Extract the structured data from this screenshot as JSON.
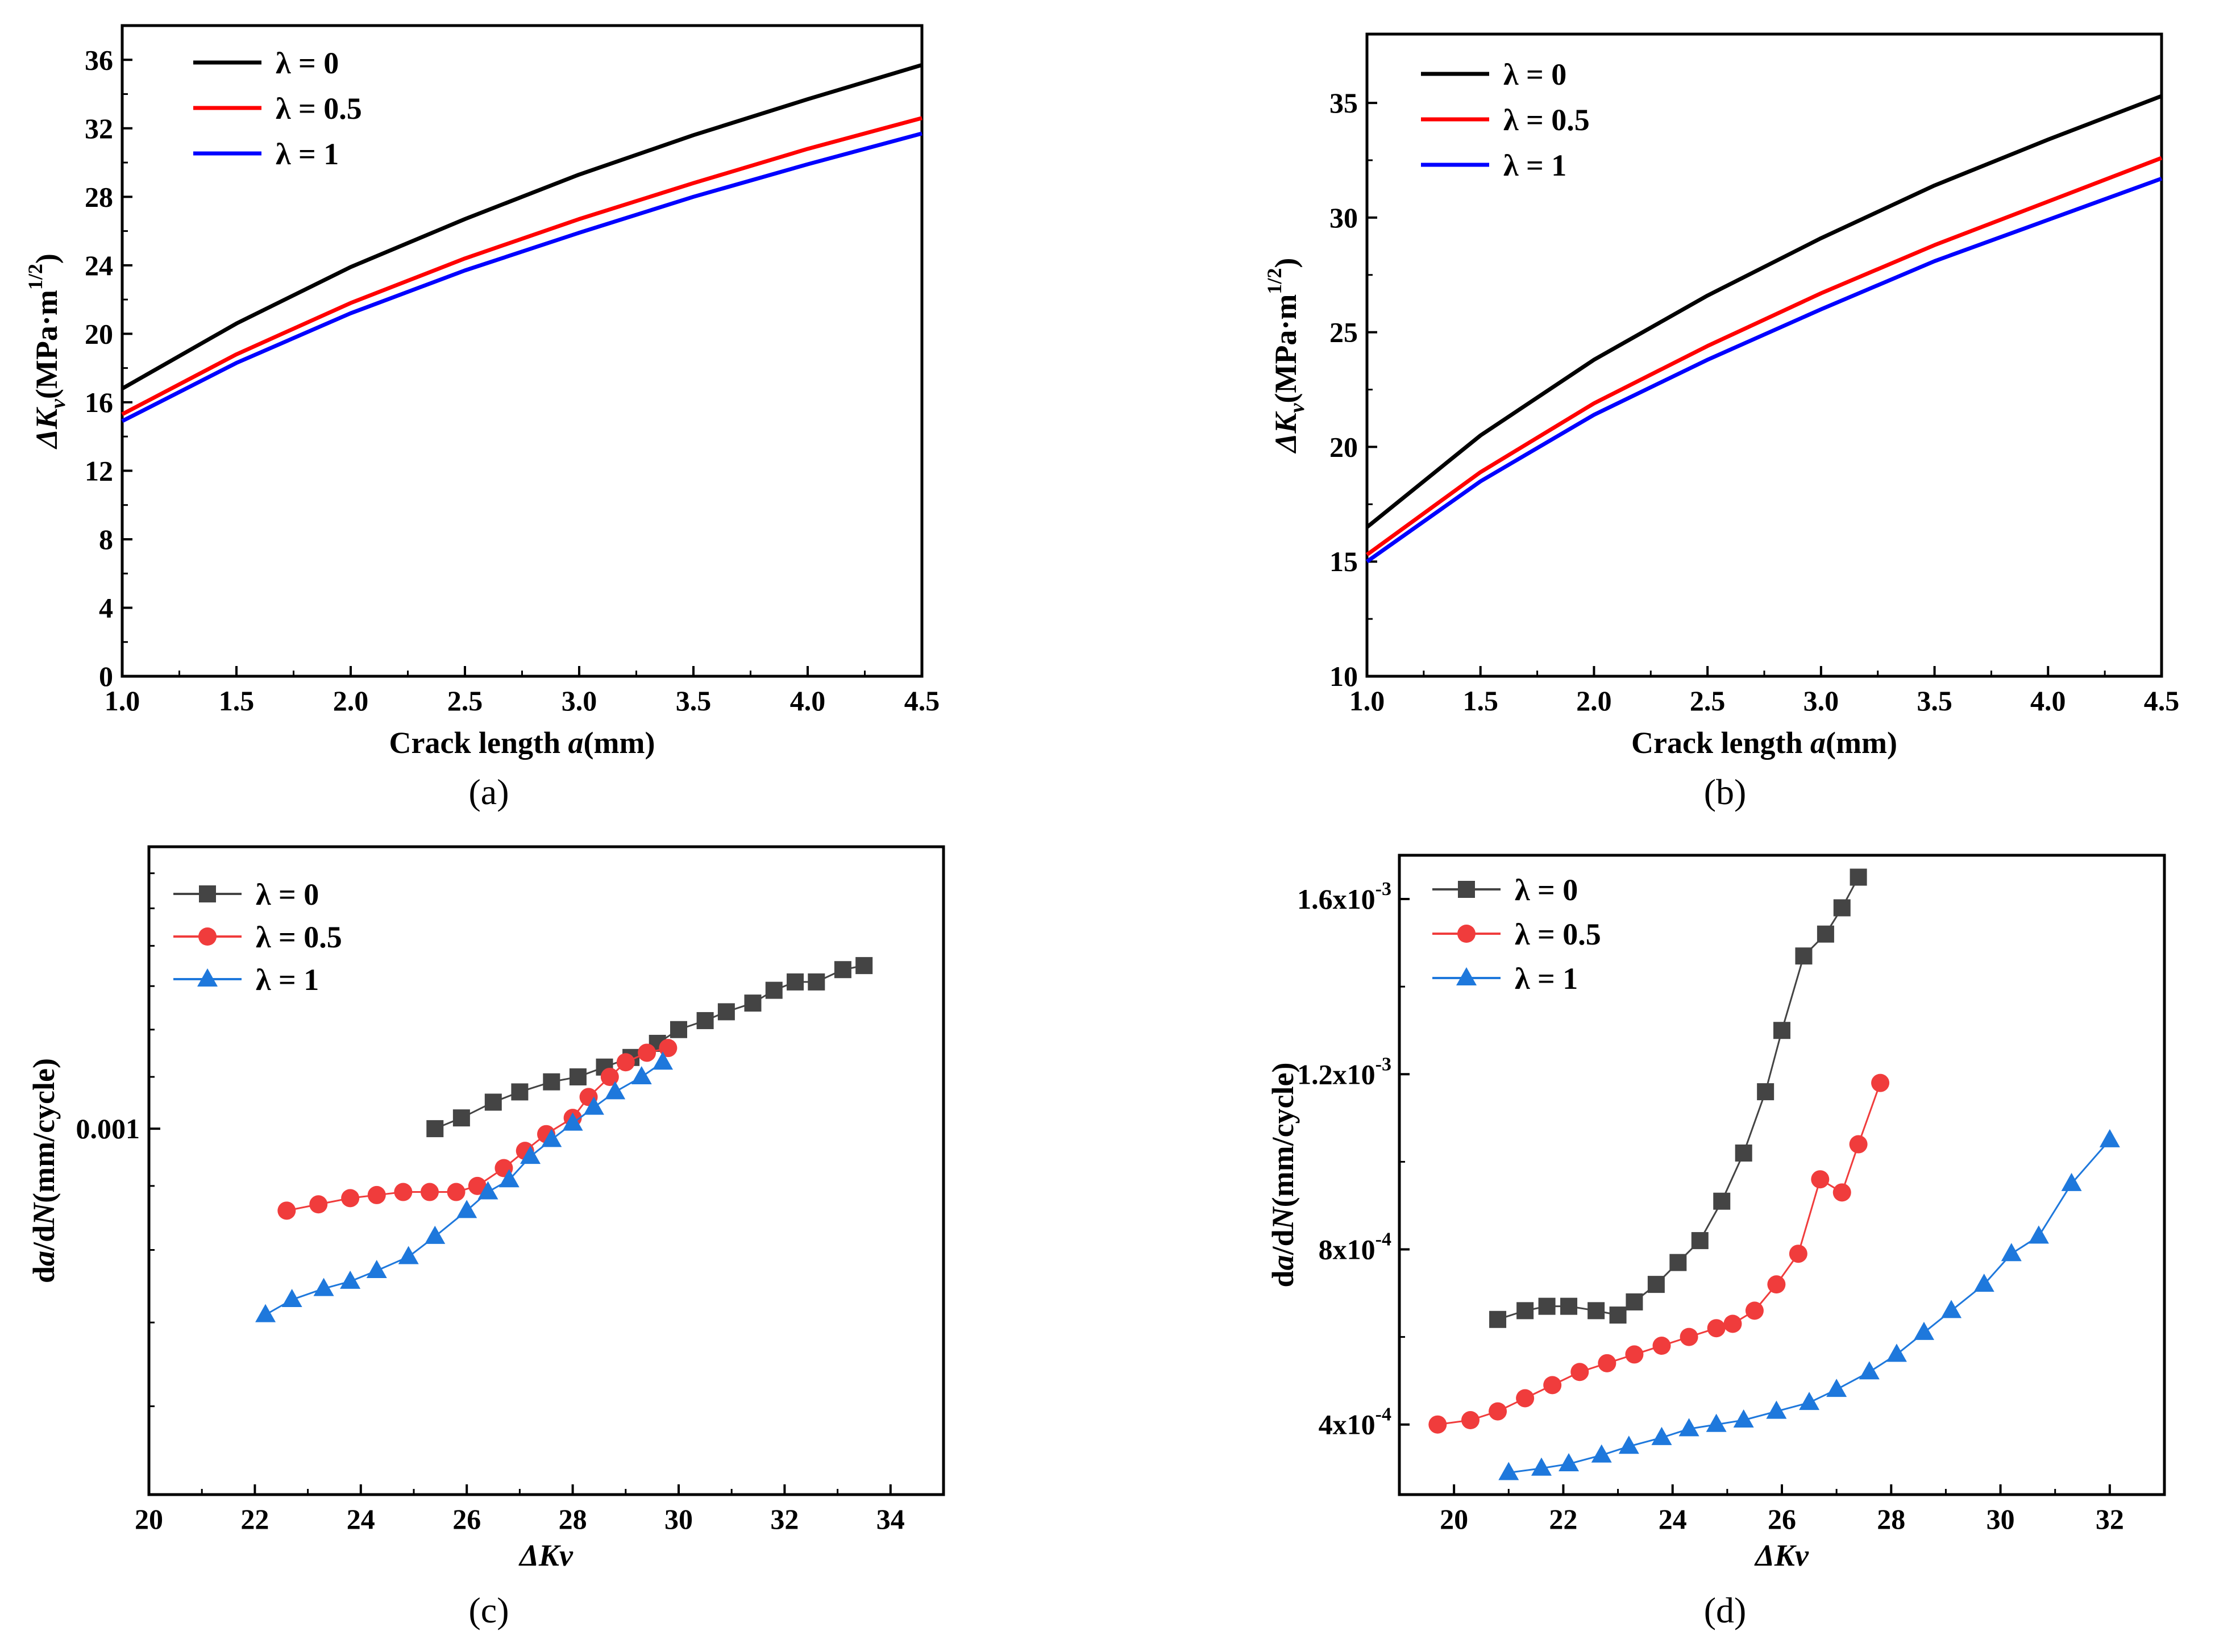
{
  "chart_data": [
    {
      "panel": "a",
      "panel_label": "(a)",
      "type": "line",
      "xlabel_prefix": "Crack length ",
      "xlabel_var": "a",
      "xlabel_suffix": "(mm)",
      "ylabel": "ΔKv(MPa·m1/2)",
      "ylabel_prefix": "Δ",
      "ylabel_var": "K",
      "ylabel_sub": "v",
      "ylabel_units": "(MPa·m",
      "ylabel_sup": "1/2",
      "ylabel_close": ")",
      "xlim": [
        1.0,
        4.5
      ],
      "ylim": [
        0,
        38
      ],
      "xticks": [
        1.0,
        1.5,
        2.0,
        2.5,
        3.0,
        3.5,
        4.0,
        4.5
      ],
      "xtick_labels": [
        "1.0",
        "1.5",
        "2.0",
        "2.5",
        "3.0",
        "3.5",
        "4.0",
        "4.5"
      ],
      "yticks": [
        0,
        4,
        8,
        12,
        16,
        20,
        24,
        28,
        32,
        36
      ],
      "ytick_labels": [
        "0",
        "4",
        "8",
        "12",
        "16",
        "20",
        "24",
        "28",
        "32",
        "36"
      ],
      "legend_position": "top-left",
      "series": [
        {
          "name": "λ = 0",
          "color": "#000000",
          "x": [
            1.0,
            1.5,
            2.0,
            2.5,
            3.0,
            3.5,
            4.0,
            4.5
          ],
          "y": [
            16.8,
            20.6,
            23.9,
            26.7,
            29.3,
            31.6,
            33.7,
            35.7
          ]
        },
        {
          "name": "λ = 0.5",
          "color": "#ff0000",
          "x": [
            1.0,
            1.5,
            2.0,
            2.5,
            3.0,
            3.5,
            4.0,
            4.5
          ],
          "y": [
            15.3,
            18.8,
            21.8,
            24.4,
            26.7,
            28.8,
            30.8,
            32.6
          ]
        },
        {
          "name": "λ = 1",
          "color": "#0000ff",
          "x": [
            1.0,
            1.5,
            2.0,
            2.5,
            3.0,
            3.5,
            4.0,
            4.5
          ],
          "y": [
            14.9,
            18.3,
            21.2,
            23.7,
            25.9,
            28.0,
            29.9,
            31.7
          ]
        }
      ]
    },
    {
      "panel": "b",
      "panel_label": "(b)",
      "type": "line",
      "xlabel_prefix": "Crack length ",
      "xlabel_var": "a",
      "xlabel_suffix": "(mm)",
      "ylabel": "ΔKv(MPa·m1/2)",
      "ylabel_prefix": "Δ",
      "ylabel_var": "K",
      "ylabel_sub": "v",
      "ylabel_units": "(MPa·m",
      "ylabel_sup": "1/2",
      "ylabel_close": ")",
      "xlim": [
        1.0,
        4.5
      ],
      "ylim": [
        10,
        38
      ],
      "xticks": [
        1.0,
        1.5,
        2.0,
        2.5,
        3.0,
        3.5,
        4.0,
        4.5
      ],
      "xtick_labels": [
        "1.0",
        "1.5",
        "2.0",
        "2.5",
        "3.0",
        "3.5",
        "4.0",
        "4.5"
      ],
      "yticks": [
        10,
        15,
        20,
        25,
        30,
        35
      ],
      "ytick_labels": [
        "10",
        "15",
        "20",
        "25",
        "30",
        "35"
      ],
      "legend_position": "top-left",
      "series": [
        {
          "name": "λ = 0",
          "color": "#000000",
          "x": [
            1.0,
            1.5,
            2.0,
            2.5,
            3.0,
            3.5,
            4.0,
            4.5
          ],
          "y": [
            16.5,
            20.5,
            23.8,
            26.6,
            29.1,
            31.4,
            33.4,
            35.3
          ]
        },
        {
          "name": "λ = 0.5",
          "color": "#ff0000",
          "x": [
            1.0,
            1.5,
            2.0,
            2.5,
            3.0,
            3.5,
            4.0,
            4.5
          ],
          "y": [
            15.3,
            18.9,
            21.9,
            24.4,
            26.7,
            28.8,
            30.7,
            32.6
          ]
        },
        {
          "name": "λ = 1",
          "color": "#0000ff",
          "x": [
            1.0,
            1.5,
            2.0,
            2.5,
            3.0,
            3.5,
            4.0,
            4.5
          ],
          "y": [
            15.0,
            18.5,
            21.4,
            23.8,
            26.0,
            28.1,
            29.9,
            31.7
          ]
        }
      ]
    },
    {
      "panel": "c",
      "panel_label": "(c)",
      "type": "line",
      "yscale": "log",
      "xlabel": "ΔKv",
      "ylabel_prefix": "d",
      "ylabel_var1": "a",
      "ylabel_mid": "/d",
      "ylabel_var2": "N",
      "ylabel_suffix": "(mm/cycle)",
      "xlim": [
        20,
        35
      ],
      "ylim": [
        0.00051,
        0.00168
      ],
      "xticks": [
        20,
        22,
        24,
        26,
        28,
        30,
        32,
        34
      ],
      "xtick_labels": [
        "20",
        "22",
        "24",
        "26",
        "28",
        "30",
        "32",
        "34"
      ],
      "yticks": [
        0.001
      ],
      "ytick_labels": [
        "0.001"
      ],
      "legend_position": "top-left",
      "series": [
        {
          "name": "λ = 0",
          "color": "#444444",
          "marker": "square",
          "x": [
            25.4,
            25.9,
            26.5,
            27.0,
            27.6,
            28.1,
            28.6,
            29.1,
            29.6,
            30.0,
            30.5,
            30.9,
            31.4,
            31.8,
            32.2,
            32.6,
            33.1,
            33.5
          ],
          "y": [
            0.001,
            0.00102,
            0.00105,
            0.00107,
            0.00109,
            0.0011,
            0.00112,
            0.00114,
            0.00117,
            0.0012,
            0.00122,
            0.00124,
            0.00126,
            0.00129,
            0.00131,
            0.00131,
            0.00134,
            0.00135
          ]
        },
        {
          "name": "λ = 0.5",
          "color": "#f03c3c",
          "marker": "circle",
          "x": [
            22.6,
            23.2,
            23.8,
            24.3,
            24.8,
            25.3,
            25.8,
            26.2,
            26.7,
            27.1,
            27.5,
            28.0,
            28.3,
            28.7,
            29.0,
            29.4,
            29.8
          ],
          "y": [
            0.00086,
            0.00087,
            0.00088,
            0.000885,
            0.00089,
            0.00089,
            0.00089,
            0.0009,
            0.00093,
            0.00096,
            0.00099,
            0.00102,
            0.00106,
            0.0011,
            0.00113,
            0.00115,
            0.00116
          ]
        },
        {
          "name": "λ = 1",
          "color": "#1e78dc",
          "marker": "triangle",
          "x": [
            22.2,
            22.7,
            23.3,
            23.8,
            24.3,
            24.9,
            25.4,
            26.0,
            26.4,
            26.8,
            27.2,
            27.6,
            28.0,
            28.4,
            28.8,
            29.3,
            29.7
          ],
          "y": [
            0.00071,
            0.00073,
            0.000745,
            0.000755,
            0.00077,
            0.00079,
            0.00082,
            0.00086,
            0.00089,
            0.00091,
            0.00095,
            0.00098,
            0.00101,
            0.00104,
            0.00107,
            0.0011,
            0.00113
          ]
        }
      ]
    },
    {
      "panel": "d",
      "panel_label": "(d)",
      "type": "line",
      "xlabel": "ΔKv",
      "ylabel_prefix": "d",
      "ylabel_var1": "a",
      "ylabel_mid": "/d",
      "ylabel_var2": "N",
      "ylabel_suffix": "(mm/cycle)",
      "xlim": [
        19,
        33
      ],
      "ylim": [
        0.00024,
        0.0017
      ],
      "xticks": [
        20,
        22,
        24,
        26,
        28,
        30,
        32
      ],
      "xtick_labels": [
        "20",
        "22",
        "24",
        "26",
        "28",
        "30",
        "32"
      ],
      "yticks": [
        0.0004,
        0.0008,
        0.0012,
        0.0016
      ],
      "ytick_mantissa": [
        "4x10",
        "8x10",
        "1.2x10",
        "1.6x10"
      ],
      "ytick_exponent": [
        "-4",
        "-4",
        "-3",
        "-3"
      ],
      "legend_position": "top-left",
      "series": [
        {
          "name": "λ = 0",
          "color": "#444444",
          "marker": "square",
          "x": [
            20.8,
            21.3,
            21.7,
            22.1,
            22.6,
            23.0,
            23.3,
            23.7,
            24.1,
            24.5,
            24.9,
            25.3,
            25.7,
            26.0,
            26.4,
            26.8,
            27.1,
            27.4
          ],
          "y": [
            0.00064,
            0.00066,
            0.00067,
            0.00067,
            0.00066,
            0.00065,
            0.00068,
            0.00072,
            0.00077,
            0.00082,
            0.00091,
            0.00102,
            0.00116,
            0.0013,
            0.00147,
            0.00152,
            0.00158,
            0.00165
          ]
        },
        {
          "name": "λ = 0.5",
          "color": "#f03c3c",
          "marker": "circle",
          "x": [
            19.7,
            20.3,
            20.8,
            21.3,
            21.8,
            22.3,
            22.8,
            23.3,
            23.8,
            24.3,
            24.8,
            25.1,
            25.5,
            25.9,
            26.3,
            26.7,
            27.1,
            27.4,
            27.8
          ],
          "y": [
            0.0004,
            0.00041,
            0.00043,
            0.00046,
            0.00049,
            0.00052,
            0.00054,
            0.00056,
            0.00058,
            0.0006,
            0.00062,
            0.00063,
            0.00066,
            0.00072,
            0.00079,
            0.00096,
            0.00093,
            0.00104,
            0.00118
          ]
        },
        {
          "name": "λ = 1",
          "color": "#1e78dc",
          "marker": "triangle",
          "x": [
            21.0,
            21.6,
            22.1,
            22.7,
            23.2,
            23.8,
            24.3,
            24.8,
            25.3,
            25.9,
            26.5,
            27.0,
            27.6,
            28.1,
            28.6,
            29.1,
            29.7,
            30.2,
            30.7,
            31.3,
            32.0
          ],
          "y": [
            0.00029,
            0.0003,
            0.00031,
            0.00033,
            0.00035,
            0.00037,
            0.00039,
            0.0004,
            0.00041,
            0.00043,
            0.00045,
            0.00048,
            0.00052,
            0.00056,
            0.00061,
            0.00066,
            0.00072,
            0.00079,
            0.00083,
            0.00095,
            0.00105
          ]
        }
      ]
    }
  ]
}
